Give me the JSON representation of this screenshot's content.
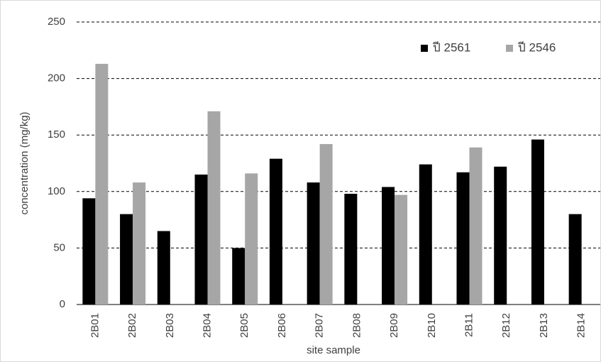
{
  "chart_data": {
    "type": "bar",
    "categories": [
      "2B01",
      "2B02",
      "2B03",
      "2B04",
      "2B05",
      "2B06",
      "2B07",
      "2B08",
      "2B09",
      "2B10",
      "2B11",
      "2B12",
      "2B13",
      "2B14"
    ],
    "series": [
      {
        "name": "ปี 2561",
        "color": "#000000",
        "values": [
          94,
          80,
          65,
          115,
          50,
          129,
          108,
          98,
          104,
          124,
          117,
          122,
          146,
          80
        ]
      },
      {
        "name": "ปี 2546",
        "color": "#a6a6a6",
        "values": [
          213,
          108,
          null,
          171,
          116,
          null,
          142,
          null,
          97,
          null,
          139,
          null,
          null,
          null
        ]
      }
    ],
    "ylabel": "concentration (mg/kg)",
    "xlabel": "site sample",
    "ylim": [
      0,
      250
    ],
    "yticks": [
      0,
      50,
      100,
      150,
      200,
      250
    ],
    "grid": true,
    "legend": "top-right"
  }
}
